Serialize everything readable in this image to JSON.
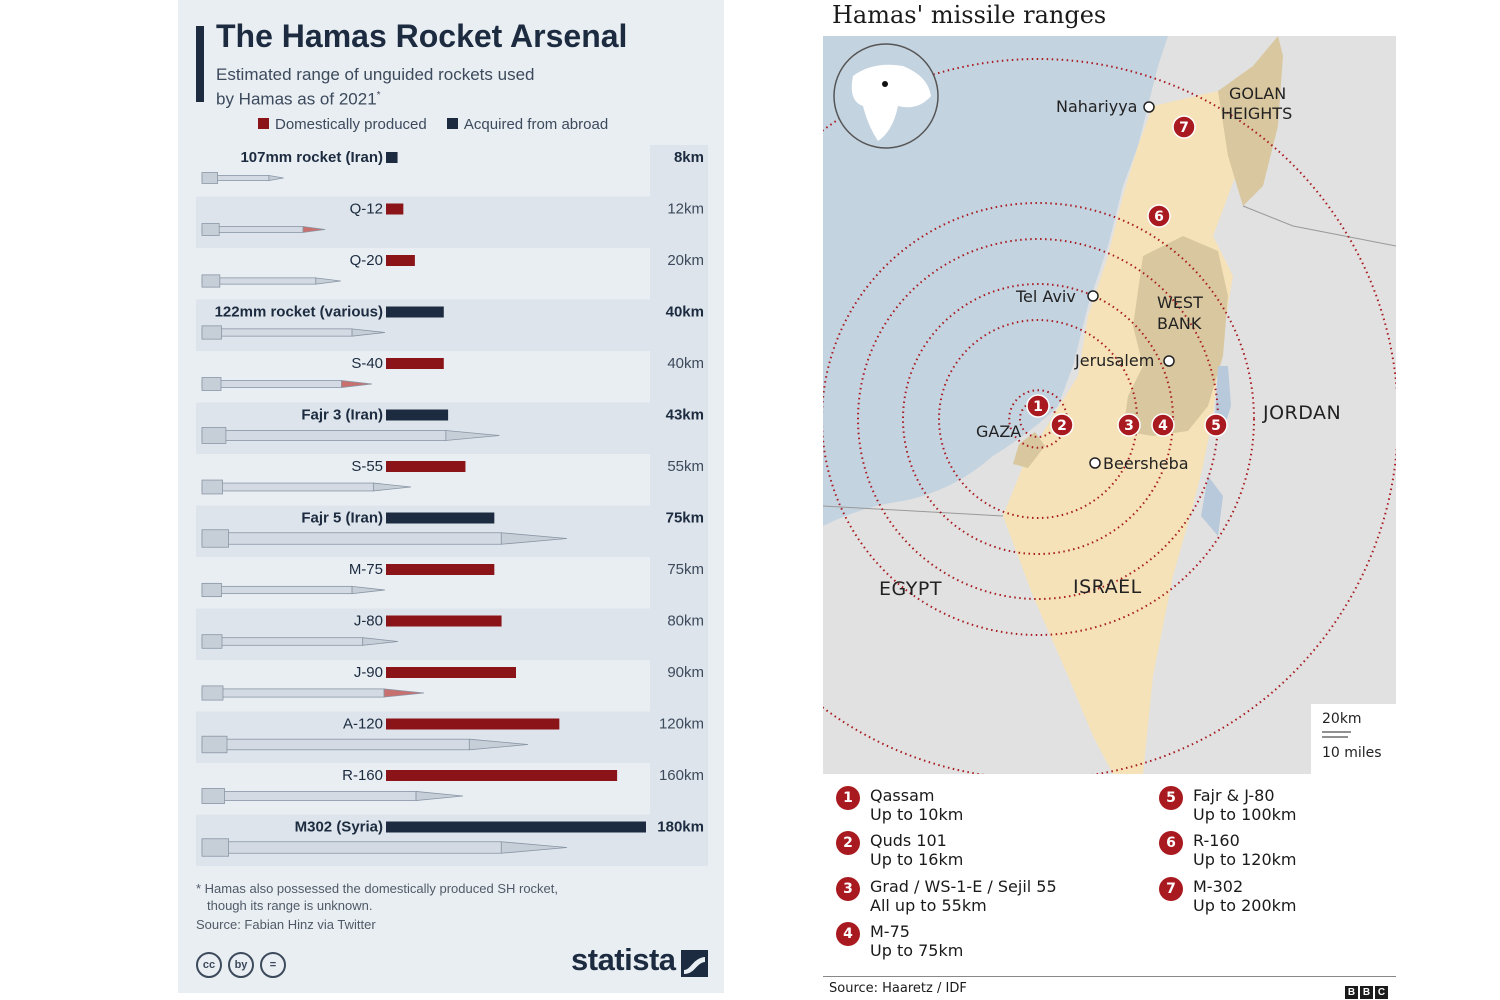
{
  "left": {
    "title": "The Hamas Rocket Arsenal",
    "subtitle": "Estimated range of unguided rockets used by Hamas as of 2021",
    "subtitle_mark": "*",
    "legend": [
      {
        "label": "Domestically produced",
        "color": "#8b1418"
      },
      {
        "label": "Acquired from abroad",
        "color": "#1c2b3f"
      }
    ],
    "footnote_line1": "* Hamas also possessed the domestically produced SH rocket,",
    "footnote_line2": "though its range is unknown.",
    "source": "Source: Fabian Hinz via Twitter",
    "logo": "statista",
    "license_icons": [
      "cc",
      "by",
      "="
    ]
  },
  "chart_data": [
    {
      "type": "bar",
      "title": "The Hamas Rocket Arsenal",
      "subtitle": "Estimated range of unguided rockets used by Hamas as of 2021*",
      "unit": "km",
      "categories": [
        "107mm rocket (Iran)",
        "Q-12",
        "Q-20",
        "122mm rocket (various)",
        "S-40",
        "Fajr 3 (Iran)",
        "S-55",
        "Fajr 5 (Iran)",
        "M-75",
        "J-80",
        "J-90",
        "A-120",
        "R-160",
        "M302 (Syria)"
      ],
      "values": [
        8,
        12,
        20,
        40,
        40,
        43,
        55,
        75,
        75,
        80,
        90,
        120,
        160,
        180
      ],
      "value_labels": [
        "8km",
        "12km",
        "20km",
        "40km",
        "40km",
        "43km",
        "55km",
        "75km",
        "75km",
        "80km",
        "90km",
        "120km",
        "160km",
        "180km"
      ],
      "origin": [
        "Acquired from abroad",
        "Domestically produced",
        "Domestically produced",
        "Acquired from abroad",
        "Domestically produced",
        "Acquired from abroad",
        "Domestically produced",
        "Acquired from abroad",
        "Domestically produced",
        "Domestically produced",
        "Domestically produced",
        "Domestically produced",
        "Domestically produced",
        "Acquired from abroad"
      ],
      "xlim": [
        0,
        180
      ],
      "grid": false,
      "legend_position": "top"
    }
  ],
  "right": {
    "title": "Hamas' missile ranges",
    "places": {
      "nahariyya": "Nahariyya",
      "tel_aviv": "Tel Aviv",
      "jerusalem": "Jerusalem",
      "beersheba": "Beersheba",
      "gaza": "GAZA"
    },
    "regions": {
      "golan_1": "GOLAN",
      "golan_2": "HEIGHTS",
      "westbank_1": "WEST",
      "westbank_2": "BANK",
      "jordan": "JORDAN",
      "egypt": "EGYPT",
      "israel": "ISRAEL"
    },
    "scale": {
      "km": "20km",
      "miles": "10 miles"
    },
    "ring_color": "#a81a1f",
    "key": [
      {
        "num": "1",
        "name": "Qassam",
        "range": "Up to 10km",
        "range_km": 10
      },
      {
        "num": "2",
        "name": "Quds 101",
        "range": "Up to 16km",
        "range_km": 16
      },
      {
        "num": "3",
        "name": "Grad / WS-1-E / Sejil 55",
        "range": "All up to 55km",
        "range_km": 55
      },
      {
        "num": "4",
        "name": "M-75",
        "range": "Up to 75km",
        "range_km": 75
      },
      {
        "num": "5",
        "name": "Fajr & J-80",
        "range": "Up to 100km",
        "range_km": 100
      },
      {
        "num": "6",
        "name": "R-160",
        "range": "Up to 120km",
        "range_km": 120
      },
      {
        "num": "7",
        "name": "M-302",
        "range": "Up to 200km",
        "range_km": 200
      }
    ],
    "source": "Source: Haaretz / IDF",
    "logo_letters": [
      "B",
      "B",
      "C"
    ]
  }
}
